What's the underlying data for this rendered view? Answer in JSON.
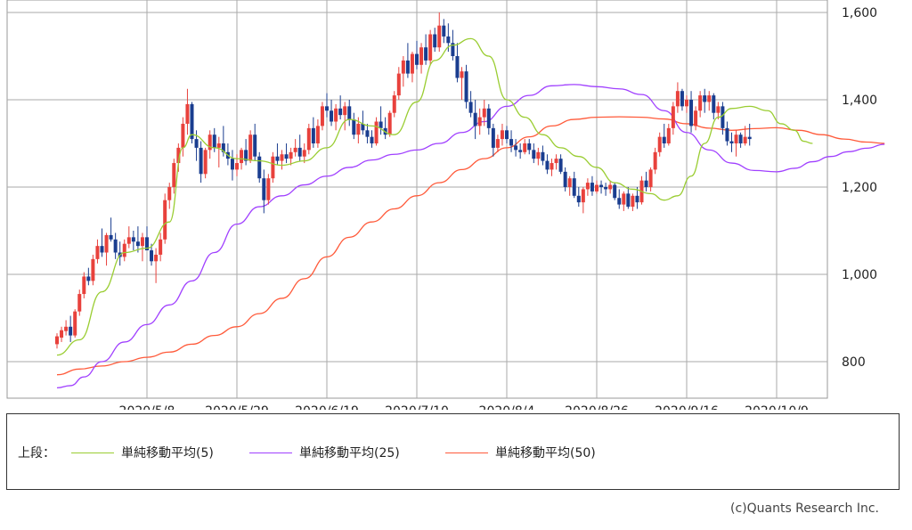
{
  "chart_data": {
    "type": "candlestick",
    "ylim": [
      720,
      1620
    ],
    "yticks": [
      800,
      1000,
      1200,
      1400,
      1600
    ],
    "ytick_labels": [
      "800",
      "1,000",
      "1,200",
      "1,400",
      "1,600"
    ],
    "xtick_labels": [
      "2020/5/8",
      "2020/5/29",
      "2020/6/19",
      "2020/7/10",
      "2020/8/4",
      "2020/8/26",
      "2020/9/16",
      "2020/10/9"
    ],
    "xtick_index": [
      20,
      40,
      60,
      80,
      100,
      120,
      140,
      160
    ],
    "candles": [
      [
        840,
        865,
        830,
        858
      ],
      [
        855,
        880,
        845,
        872
      ],
      [
        870,
        895,
        860,
        880
      ],
      [
        880,
        905,
        845,
        860
      ],
      [
        860,
        920,
        855,
        915
      ],
      [
        915,
        965,
        905,
        955
      ],
      [
        955,
        1005,
        945,
        995
      ],
      [
        995,
        1015,
        975,
        985
      ],
      [
        985,
        1045,
        975,
        1035
      ],
      [
        1035,
        1080,
        1025,
        1065
      ],
      [
        1065,
        1105,
        1040,
        1050
      ],
      [
        1050,
        1095,
        1020,
        1090
      ],
      [
        1090,
        1130,
        1075,
        1080
      ],
      [
        1080,
        1095,
        1035,
        1050
      ],
      [
        1050,
        1075,
        1020,
        1040
      ],
      [
        1040,
        1080,
        1030,
        1070
      ],
      [
        1070,
        1110,
        1060,
        1085
      ],
      [
        1085,
        1100,
        1055,
        1075
      ],
      [
        1075,
        1110,
        1050,
        1065
      ],
      [
        1065,
        1095,
        1030,
        1085
      ],
      [
        1085,
        1110,
        1060,
        1055
      ],
      [
        1055,
        1070,
        1020,
        1030
      ],
      [
        1030,
        1060,
        980,
        1045
      ],
      [
        1045,
        1095,
        1030,
        1080
      ],
      [
        1080,
        1185,
        1070,
        1170
      ],
      [
        1170,
        1210,
        1150,
        1200
      ],
      [
        1200,
        1265,
        1185,
        1255
      ],
      [
        1255,
        1300,
        1235,
        1290
      ],
      [
        1290,
        1360,
        1270,
        1345
      ],
      [
        1345,
        1425,
        1320,
        1390
      ],
      [
        1390,
        1395,
        1300,
        1310
      ],
      [
        1310,
        1330,
        1260,
        1290
      ],
      [
        1290,
        1305,
        1210,
        1230
      ],
      [
        1230,
        1290,
        1220,
        1285
      ],
      [
        1285,
        1330,
        1265,
        1320
      ],
      [
        1320,
        1335,
        1280,
        1290
      ],
      [
        1290,
        1315,
        1245,
        1300
      ],
      [
        1300,
        1340,
        1270,
        1280
      ],
      [
        1280,
        1300,
        1250,
        1265
      ],
      [
        1265,
        1285,
        1215,
        1240
      ],
      [
        1240,
        1275,
        1225,
        1255
      ],
      [
        1255,
        1290,
        1240,
        1285
      ],
      [
        1285,
        1310,
        1250,
        1260
      ],
      [
        1260,
        1330,
        1255,
        1320
      ],
      [
        1320,
        1345,
        1260,
        1270
      ],
      [
        1270,
        1280,
        1210,
        1220
      ],
      [
        1220,
        1240,
        1140,
        1170
      ],
      [
        1170,
        1230,
        1160,
        1220
      ],
      [
        1220,
        1280,
        1210,
        1270
      ],
      [
        1270,
        1300,
        1250,
        1260
      ],
      [
        1260,
        1285,
        1240,
        1275
      ],
      [
        1275,
        1300,
        1255,
        1265
      ],
      [
        1265,
        1290,
        1250,
        1280
      ],
      [
        1280,
        1310,
        1270,
        1290
      ],
      [
        1290,
        1320,
        1260,
        1270
      ],
      [
        1270,
        1300,
        1255,
        1285
      ],
      [
        1285,
        1345,
        1275,
        1335
      ],
      [
        1335,
        1360,
        1290,
        1300
      ],
      [
        1300,
        1355,
        1290,
        1340
      ],
      [
        1340,
        1395,
        1330,
        1385
      ],
      [
        1385,
        1415,
        1360,
        1375
      ],
      [
        1375,
        1400,
        1340,
        1350
      ],
      [
        1350,
        1390,
        1330,
        1380
      ],
      [
        1380,
        1410,
        1355,
        1365
      ],
      [
        1365,
        1395,
        1330,
        1385
      ],
      [
        1385,
        1400,
        1340,
        1355
      ],
      [
        1355,
        1370,
        1310,
        1320
      ],
      [
        1320,
        1360,
        1300,
        1345
      ],
      [
        1345,
        1375,
        1320,
        1330
      ],
      [
        1330,
        1345,
        1300,
        1315
      ],
      [
        1315,
        1330,
        1290,
        1300
      ],
      [
        1300,
        1360,
        1295,
        1350
      ],
      [
        1350,
        1385,
        1320,
        1335
      ],
      [
        1335,
        1360,
        1310,
        1320
      ],
      [
        1320,
        1375,
        1315,
        1370
      ],
      [
        1370,
        1420,
        1360,
        1410
      ],
      [
        1410,
        1475,
        1400,
        1460
      ],
      [
        1460,
        1500,
        1430,
        1490
      ],
      [
        1490,
        1530,
        1450,
        1460
      ],
      [
        1460,
        1510,
        1440,
        1505
      ],
      [
        1505,
        1535,
        1470,
        1480
      ],
      [
        1480,
        1530,
        1460,
        1520
      ],
      [
        1520,
        1550,
        1480,
        1490
      ],
      [
        1490,
        1560,
        1480,
        1550
      ],
      [
        1550,
        1565,
        1510,
        1520
      ],
      [
        1520,
        1600,
        1510,
        1570
      ],
      [
        1570,
        1585,
        1530,
        1545
      ],
      [
        1545,
        1575,
        1510,
        1530
      ],
      [
        1530,
        1560,
        1490,
        1500
      ],
      [
        1500,
        1530,
        1440,
        1450
      ],
      [
        1450,
        1475,
        1400,
        1465
      ],
      [
        1465,
        1480,
        1380,
        1395
      ],
      [
        1395,
        1420,
        1360,
        1370
      ],
      [
        1370,
        1400,
        1310,
        1340
      ],
      [
        1340,
        1380,
        1320,
        1360
      ],
      [
        1360,
        1400,
        1340,
        1380
      ],
      [
        1380,
        1390,
        1320,
        1335
      ],
      [
        1335,
        1345,
        1270,
        1290
      ],
      [
        1290,
        1320,
        1280,
        1310
      ],
      [
        1310,
        1345,
        1295,
        1330
      ],
      [
        1330,
        1340,
        1300,
        1310
      ],
      [
        1310,
        1330,
        1280,
        1295
      ],
      [
        1295,
        1310,
        1270,
        1285
      ],
      [
        1285,
        1300,
        1265,
        1280
      ],
      [
        1280,
        1310,
        1275,
        1300
      ],
      [
        1300,
        1310,
        1275,
        1285
      ],
      [
        1285,
        1300,
        1255,
        1265
      ],
      [
        1265,
        1290,
        1250,
        1280
      ],
      [
        1280,
        1295,
        1250,
        1260
      ],
      [
        1260,
        1275,
        1230,
        1240
      ],
      [
        1240,
        1265,
        1225,
        1255
      ],
      [
        1255,
        1275,
        1240,
        1265
      ],
      [
        1265,
        1275,
        1230,
        1235
      ],
      [
        1235,
        1245,
        1190,
        1200
      ],
      [
        1200,
        1225,
        1180,
        1220
      ],
      [
        1220,
        1235,
        1175,
        1180
      ],
      [
        1180,
        1200,
        1155,
        1165
      ],
      [
        1165,
        1200,
        1140,
        1195
      ],
      [
        1195,
        1220,
        1180,
        1210
      ],
      [
        1210,
        1225,
        1180,
        1190
      ],
      [
        1190,
        1215,
        1185,
        1205
      ],
      [
        1205,
        1215,
        1185,
        1200
      ],
      [
        1200,
        1210,
        1180,
        1195
      ],
      [
        1195,
        1215,
        1185,
        1205
      ],
      [
        1205,
        1210,
        1170,
        1175
      ],
      [
        1175,
        1195,
        1150,
        1160
      ],
      [
        1160,
        1190,
        1145,
        1185
      ],
      [
        1185,
        1200,
        1150,
        1155
      ],
      [
        1155,
        1185,
        1145,
        1180
      ],
      [
        1180,
        1200,
        1150,
        1165
      ],
      [
        1165,
        1225,
        1160,
        1215
      ],
      [
        1215,
        1235,
        1190,
        1200
      ],
      [
        1200,
        1245,
        1190,
        1240
      ],
      [
        1240,
        1290,
        1230,
        1280
      ],
      [
        1280,
        1325,
        1270,
        1315
      ],
      [
        1315,
        1345,
        1290,
        1300
      ],
      [
        1300,
        1345,
        1295,
        1335
      ],
      [
        1335,
        1395,
        1320,
        1385
      ],
      [
        1385,
        1440,
        1370,
        1420
      ],
      [
        1420,
        1425,
        1375,
        1385
      ],
      [
        1385,
        1410,
        1370,
        1400
      ],
      [
        1400,
        1420,
        1325,
        1340
      ],
      [
        1340,
        1385,
        1330,
        1375
      ],
      [
        1375,
        1420,
        1360,
        1410
      ],
      [
        1410,
        1425,
        1370,
        1395
      ],
      [
        1395,
        1420,
        1375,
        1410
      ],
      [
        1410,
        1415,
        1355,
        1370
      ],
      [
        1370,
        1395,
        1355,
        1385
      ],
      [
        1385,
        1395,
        1320,
        1335
      ],
      [
        1335,
        1350,
        1295,
        1305
      ],
      [
        1305,
        1325,
        1280,
        1300
      ],
      [
        1300,
        1330,
        1270,
        1320
      ],
      [
        1320,
        1325,
        1290,
        1300
      ],
      [
        1300,
        1340,
        1295,
        1315
      ],
      [
        1315,
        1345,
        1295,
        1310
      ]
    ],
    "ma5_anchors": [
      [
        0,
        815
      ],
      [
        5,
        850
      ],
      [
        10,
        960
      ],
      [
        15,
        1050
      ],
      [
        20,
        1060
      ],
      [
        25,
        1120
      ],
      [
        28,
        1290
      ],
      [
        30,
        1320
      ],
      [
        35,
        1290
      ],
      [
        40,
        1265
      ],
      [
        45,
        1260
      ],
      [
        50,
        1250
      ],
      [
        55,
        1260
      ],
      [
        60,
        1290
      ],
      [
        65,
        1355
      ],
      [
        70,
        1340
      ],
      [
        75,
        1320
      ],
      [
        80,
        1395
      ],
      [
        84,
        1490
      ],
      [
        88,
        1525
      ],
      [
        92,
        1540
      ],
      [
        96,
        1500
      ],
      [
        100,
        1400
      ],
      [
        104,
        1360
      ],
      [
        108,
        1320
      ],
      [
        112,
        1290
      ],
      [
        116,
        1270
      ],
      [
        120,
        1245
      ],
      [
        124,
        1210
      ],
      [
        128,
        1195
      ],
      [
        132,
        1185
      ],
      [
        135,
        1170
      ],
      [
        138,
        1180
      ],
      [
        141,
        1225
      ],
      [
        144,
        1300
      ],
      [
        147,
        1360
      ],
      [
        150,
        1380
      ],
      [
        154,
        1385
      ],
      [
        158,
        1375
      ],
      [
        161,
        1345
      ],
      [
        164,
        1330
      ],
      [
        166,
        1305
      ],
      [
        168,
        1300
      ]
    ],
    "ma25_anchors": [
      [
        0,
        740
      ],
      [
        3,
        745
      ],
      [
        6,
        765
      ],
      [
        10,
        800
      ],
      [
        15,
        845
      ],
      [
        20,
        885
      ],
      [
        25,
        930
      ],
      [
        30,
        985
      ],
      [
        35,
        1050
      ],
      [
        40,
        1115
      ],
      [
        45,
        1155
      ],
      [
        50,
        1180
      ],
      [
        55,
        1205
      ],
      [
        60,
        1225
      ],
      [
        65,
        1245
      ],
      [
        70,
        1262
      ],
      [
        75,
        1275
      ],
      [
        80,
        1285
      ],
      [
        85,
        1300
      ],
      [
        90,
        1325
      ],
      [
        95,
        1350
      ],
      [
        100,
        1385
      ],
      [
        105,
        1410
      ],
      [
        110,
        1432
      ],
      [
        115,
        1435
      ],
      [
        120,
        1430
      ],
      [
        125,
        1425
      ],
      [
        130,
        1412
      ],
      [
        135,
        1375
      ],
      [
        140,
        1325
      ],
      [
        145,
        1285
      ],
      [
        150,
        1255
      ],
      [
        155,
        1238
      ],
      [
        160,
        1235
      ],
      [
        164,
        1243
      ],
      [
        168,
        1258
      ],
      [
        172,
        1270
      ],
      [
        176,
        1281
      ],
      [
        180,
        1289
      ],
      [
        184,
        1298
      ]
    ],
    "ma50_anchors": [
      [
        0,
        770
      ],
      [
        5,
        783
      ],
      [
        10,
        790
      ],
      [
        15,
        800
      ],
      [
        20,
        810
      ],
      [
        25,
        822
      ],
      [
        30,
        840
      ],
      [
        35,
        860
      ],
      [
        40,
        880
      ],
      [
        45,
        910
      ],
      [
        50,
        945
      ],
      [
        55,
        990
      ],
      [
        60,
        1040
      ],
      [
        65,
        1085
      ],
      [
        70,
        1120
      ],
      [
        75,
        1150
      ],
      [
        80,
        1180
      ],
      [
        85,
        1210
      ],
      [
        90,
        1240
      ],
      [
        95,
        1265
      ],
      [
        100,
        1290
      ],
      [
        105,
        1315
      ],
      [
        110,
        1340
      ],
      [
        115,
        1355
      ],
      [
        120,
        1360
      ],
      [
        125,
        1361
      ],
      [
        130,
        1360
      ],
      [
        135,
        1356
      ],
      [
        140,
        1345
      ],
      [
        145,
        1335
      ],
      [
        150,
        1330
      ],
      [
        155,
        1334
      ],
      [
        160,
        1336
      ],
      [
        165,
        1330
      ],
      [
        170,
        1320
      ],
      [
        175,
        1310
      ],
      [
        180,
        1303
      ],
      [
        184,
        1300
      ]
    ],
    "series": [
      {
        "name": "単純移動平均(5)",
        "color": "#9acd32"
      },
      {
        "name": "単純移動平均(25)",
        "color": "#a040ff"
      },
      {
        "name": "単純移動平均(50)",
        "color": "#ff5a3a"
      }
    ],
    "grid": true
  },
  "legend": {
    "prefix": "上段：",
    "items": [
      "単純移動平均(5)",
      "単純移動平均(25)",
      "単純移動平均(50)"
    ],
    "colors": [
      "#9acd32",
      "#a040ff",
      "#ff5a3a"
    ]
  },
  "copyright": "(c)Quants Research Inc.",
  "colors": {
    "up": "#e8413c",
    "down": "#1a3d8f"
  }
}
